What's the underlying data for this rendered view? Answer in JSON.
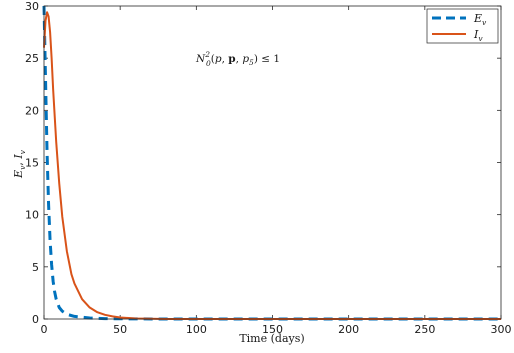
{
  "chart_data": {
    "type": "line",
    "xlabel": "Time  (days)",
    "ylabel_main": "E",
    "ylabel_sub1": "v",
    "ylabel_sep": ", ",
    "ylabel_main2": "I",
    "ylabel_sub2": "v",
    "xlim": [
      0,
      300
    ],
    "ylim": [
      0,
      30
    ],
    "xticks": [
      0,
      50,
      100,
      150,
      200,
      250,
      300
    ],
    "yticks": [
      0,
      5,
      10,
      15,
      20,
      25,
      30
    ],
    "grid": false,
    "legend_position": "top-right",
    "annotation": {
      "n": "N",
      "sup": "2",
      "sub": "0",
      "args_open": "(",
      "arg_p": "p",
      "comma1": ", ",
      "arg_bold_p": "p",
      "comma2": ", ",
      "arg_p5": "p",
      "arg_p5_sub": "5",
      "args_close": ")",
      "relation": " ≤ 1"
    },
    "series": [
      {
        "name": "E",
        "name_sub": "v",
        "color": "#0072BD",
        "style": "dashed",
        "x": [
          0,
          1,
          2,
          3,
          4,
          5,
          6,
          7,
          8,
          10,
          12,
          15,
          20,
          30,
          40,
          50,
          60,
          80,
          100,
          150,
          200,
          250,
          300
        ],
        "y": [
          30,
          23,
          16,
          11,
          7.5,
          5.2,
          3.6,
          2.6,
          1.9,
          1.1,
          0.75,
          0.45,
          0.25,
          0.1,
          0.04,
          0.02,
          0.01,
          0,
          0,
          0,
          0,
          0,
          0
        ]
      },
      {
        "name": "I",
        "name_sub": "v",
        "color": "#D95319",
        "style": "solid",
        "x": [
          0,
          1,
          2,
          3,
          4,
          5,
          6,
          8,
          10,
          12,
          15,
          18,
          20,
          25,
          30,
          35,
          40,
          45,
          50,
          60,
          70,
          80,
          100,
          150,
          200,
          250,
          300
        ],
        "y": [
          26,
          28.6,
          29.4,
          29,
          27.5,
          25,
          22,
          17,
          13,
          9.8,
          6.5,
          4.3,
          3.4,
          1.9,
          1.1,
          0.65,
          0.4,
          0.25,
          0.15,
          0.05,
          0.02,
          0,
          0,
          0,
          0,
          0,
          0
        ]
      }
    ]
  }
}
